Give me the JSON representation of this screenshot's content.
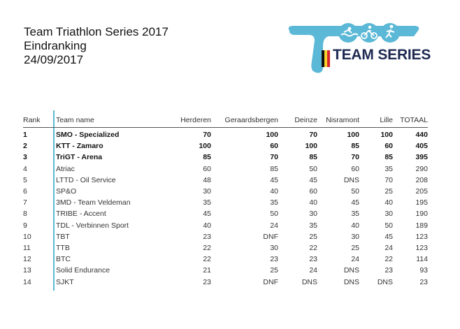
{
  "header": {
    "title": "Team Triathlon Series 2017",
    "subtitle": "Eindranking",
    "date": "24/09/2017"
  },
  "logo": {
    "text": "TEAM SERIES",
    "colors": {
      "accent": "#5bb8d6",
      "navy": "#1e2a52",
      "flag_black": "#111111",
      "flag_yellow": "#f6d22e",
      "flag_red": "#d9262e"
    }
  },
  "table": {
    "columns": [
      "Rank",
      "Team name",
      "Herderen",
      "Geraardsbergen",
      "Deinze",
      "Nisramont",
      "Lille",
      "TOTAAL"
    ],
    "rows": [
      {
        "rank": "1",
        "team": "SMO - Specialized",
        "herderen": "70",
        "geraardsbergen": "100",
        "deinze": "70",
        "nisramont": "100",
        "lille": "100",
        "totaal": "440"
      },
      {
        "rank": "2",
        "team": "KTT - Zamaro",
        "herderen": "100",
        "geraardsbergen": "60",
        "deinze": "100",
        "nisramont": "85",
        "lille": "60",
        "totaal": "405"
      },
      {
        "rank": "3",
        "team": "TriGT - Arena",
        "herderen": "85",
        "geraardsbergen": "70",
        "deinze": "85",
        "nisramont": "70",
        "lille": "85",
        "totaal": "395"
      },
      {
        "rank": "4",
        "team": "Atriac",
        "herderen": "60",
        "geraardsbergen": "85",
        "deinze": "50",
        "nisramont": "60",
        "lille": "35",
        "totaal": "290"
      },
      {
        "rank": "5",
        "team": "LTTD - Oil Service",
        "herderen": "48",
        "geraardsbergen": "45",
        "deinze": "45",
        "nisramont": "DNS",
        "lille": "70",
        "totaal": "208"
      },
      {
        "rank": "6",
        "team": "SP&O",
        "herderen": "30",
        "geraardsbergen": "40",
        "deinze": "60",
        "nisramont": "50",
        "lille": "25",
        "totaal": "205"
      },
      {
        "rank": "7",
        "team": "3MD - Team Veldeman",
        "herderen": "35",
        "geraardsbergen": "35",
        "deinze": "40",
        "nisramont": "45",
        "lille": "40",
        "totaal": "195"
      },
      {
        "rank": "8",
        "team": "TRIBE - Accent",
        "herderen": "45",
        "geraardsbergen": "50",
        "deinze": "30",
        "nisramont": "35",
        "lille": "30",
        "totaal": "190"
      },
      {
        "rank": "9",
        "team": "TDL - Verbinnen Sport",
        "herderen": "40",
        "geraardsbergen": "24",
        "deinze": "35",
        "nisramont": "40",
        "lille": "50",
        "totaal": "189"
      },
      {
        "rank": "10",
        "team": "TBT",
        "herderen": "23",
        "geraardsbergen": "DNF",
        "deinze": "25",
        "nisramont": "30",
        "lille": "45",
        "totaal": "123"
      },
      {
        "rank": "11",
        "team": "TTB",
        "herderen": "22",
        "geraardsbergen": "30",
        "deinze": "22",
        "nisramont": "25",
        "lille": "24",
        "totaal": "123"
      },
      {
        "rank": "12",
        "team": "BTC",
        "herderen": "22",
        "geraardsbergen": "23",
        "deinze": "23",
        "nisramont": "24",
        "lille": "22",
        "totaal": "114"
      },
      {
        "rank": "13",
        "team": "Solid Endurance",
        "herderen": "21",
        "geraardsbergen": "25",
        "deinze": "24",
        "nisramont": "DNS",
        "lille": "23",
        "totaal": "93"
      },
      {
        "rank": "14",
        "team": "SJKT",
        "herderen": "23",
        "geraardsbergen": "DNF",
        "deinze": "DNS",
        "nisramont": "DNS",
        "lille": "DNS",
        "totaal": "23"
      }
    ]
  }
}
